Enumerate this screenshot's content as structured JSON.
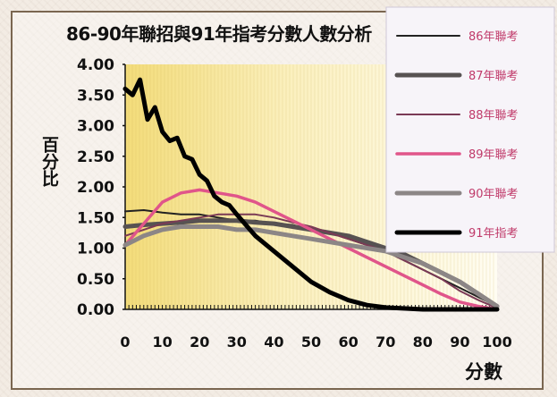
{
  "chart_data": {
    "type": "line",
    "title": "86-90年聯招與91年指考分數人數分析",
    "ylabel": "百分比",
    "xlabel": "分數",
    "xlim": [
      0,
      100
    ],
    "ylim": [
      0,
      4
    ],
    "ytick_labels": [
      "4.00",
      "3.50",
      "3.00",
      "2.50",
      "2.00",
      "1.50",
      "1.00",
      "0.50",
      "0.00"
    ],
    "yticks": [
      4,
      3.5,
      3,
      2.5,
      2,
      1.5,
      1,
      0.5,
      0
    ],
    "xtick_labels": [
      "0",
      "10",
      "20",
      "30",
      "40",
      "50",
      "60",
      "70",
      "80",
      "90",
      "100"
    ],
    "xticks": [
      0,
      10,
      20,
      30,
      40,
      50,
      60,
      70,
      80,
      90,
      100
    ],
    "legend_position": "right",
    "series": [
      {
        "name": "86年聯考",
        "color": "#222222",
        "style": "thin",
        "x": [
          0,
          5,
          10,
          15,
          20,
          25,
          30,
          35,
          40,
          45,
          50,
          55,
          60,
          65,
          70,
          75,
          80,
          85,
          90,
          95,
          100
        ],
        "y": [
          1.6,
          1.62,
          1.58,
          1.55,
          1.55,
          1.5,
          1.45,
          1.45,
          1.4,
          1.38,
          1.3,
          1.25,
          1.15,
          1.05,
          0.95,
          0.8,
          0.65,
          0.5,
          0.35,
          0.2,
          0.05
        ]
      },
      {
        "name": "87年聯考",
        "color": "#575252",
        "style": "thick",
        "x": [
          0,
          5,
          10,
          15,
          20,
          25,
          30,
          35,
          40,
          45,
          50,
          55,
          60,
          65,
          70,
          75,
          80,
          85,
          90,
          95,
          100
        ],
        "y": [
          1.35,
          1.38,
          1.4,
          1.42,
          1.45,
          1.45,
          1.45,
          1.42,
          1.4,
          1.35,
          1.3,
          1.25,
          1.2,
          1.1,
          1.0,
          0.9,
          0.75,
          0.6,
          0.45,
          0.25,
          0.05
        ]
      },
      {
        "name": "88年聯考",
        "color": "#7a3a55",
        "style": "thin",
        "x": [
          0,
          5,
          10,
          15,
          20,
          25,
          30,
          35,
          40,
          45,
          50,
          55,
          60,
          65,
          70,
          75,
          80,
          85,
          90,
          95,
          100
        ],
        "y": [
          1.2,
          1.3,
          1.4,
          1.45,
          1.5,
          1.55,
          1.55,
          1.55,
          1.5,
          1.42,
          1.35,
          1.25,
          1.15,
          1.05,
          0.95,
          0.8,
          0.65,
          0.5,
          0.3,
          0.15,
          0.02
        ]
      },
      {
        "name": "89年聯考",
        "color": "#e0558a",
        "style": "medium",
        "x": [
          0,
          5,
          10,
          15,
          20,
          25,
          30,
          35,
          40,
          45,
          50,
          55,
          60,
          65,
          70,
          75,
          80,
          85,
          90,
          95,
          100
        ],
        "y": [
          1.05,
          1.4,
          1.75,
          1.9,
          1.95,
          1.9,
          1.85,
          1.75,
          1.6,
          1.45,
          1.3,
          1.15,
          1.0,
          0.85,
          0.7,
          0.55,
          0.4,
          0.25,
          0.12,
          0.05,
          0.0
        ]
      },
      {
        "name": "90年聯考",
        "color": "#8c8686",
        "style": "thick",
        "x": [
          0,
          5,
          10,
          15,
          20,
          25,
          30,
          35,
          40,
          45,
          50,
          55,
          60,
          65,
          70,
          75,
          80,
          85,
          90,
          95,
          100
        ],
        "y": [
          1.05,
          1.2,
          1.3,
          1.35,
          1.35,
          1.35,
          1.3,
          1.3,
          1.25,
          1.2,
          1.15,
          1.1,
          1.05,
          1.0,
          0.95,
          0.85,
          0.75,
          0.6,
          0.45,
          0.25,
          0.05
        ]
      },
      {
        "name": "91年指考",
        "color": "#000000",
        "style": "thick",
        "x": [
          0,
          2,
          4,
          6,
          8,
          10,
          12,
          14,
          16,
          18,
          20,
          22,
          24,
          26,
          28,
          30,
          35,
          40,
          45,
          50,
          55,
          60,
          65,
          70,
          80,
          90,
          100
        ],
        "y": [
          3.6,
          3.5,
          3.75,
          3.1,
          3.3,
          2.9,
          2.75,
          2.8,
          2.5,
          2.45,
          2.2,
          2.1,
          1.85,
          1.75,
          1.7,
          1.55,
          1.2,
          0.95,
          0.7,
          0.45,
          0.28,
          0.15,
          0.07,
          0.03,
          0.0,
          0.0,
          0.0
        ]
      }
    ]
  }
}
